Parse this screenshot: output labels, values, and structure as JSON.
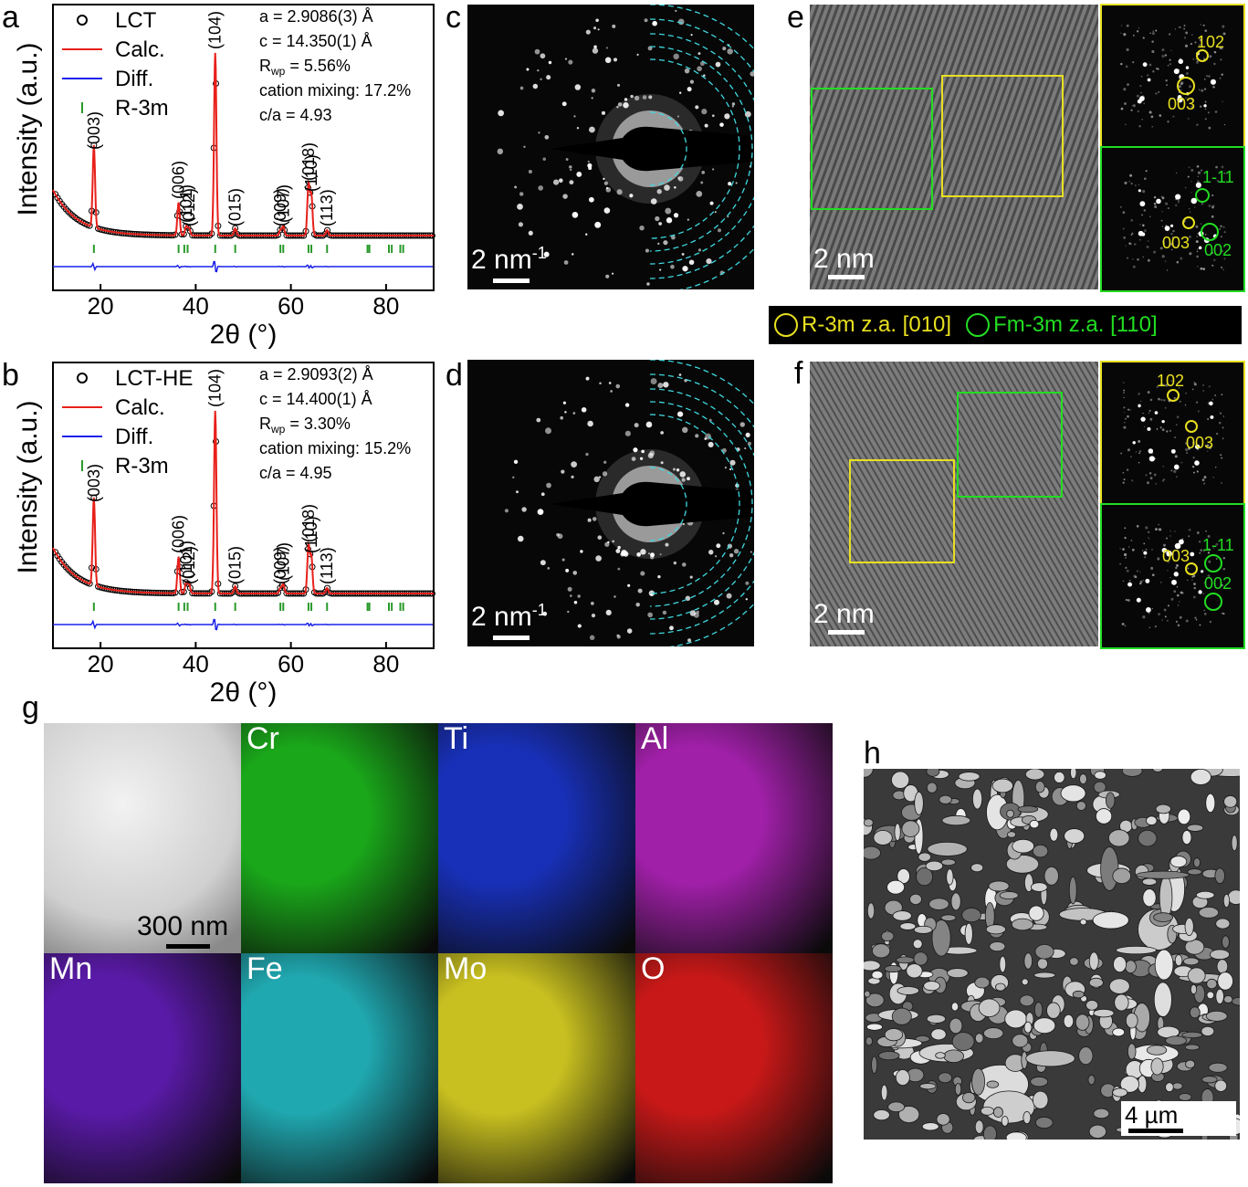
{
  "panels": {
    "a": {
      "letter": "a",
      "chart_data": {
        "type": "line",
        "xlabel": "2θ (°)",
        "ylabel": "Intensity (a.u.)",
        "xlim": [
          10,
          90
        ],
        "x_ticks": [
          "20",
          "40",
          "60",
          "80"
        ],
        "series": [
          {
            "name": "LCT",
            "style": "open-circle",
            "color": "#000000"
          },
          {
            "name": "Calc.",
            "color": "#e8201a"
          },
          {
            "name": "Diff.",
            "color": "#1a20e8"
          },
          {
            "name": "R-3m",
            "style": "tick",
            "color": "#2a9a2a"
          }
        ],
        "peaks": [
          {
            "label": "(003)",
            "x": 18.6,
            "height": 0.45
          },
          {
            "label": "(006)",
            "x": 36.4,
            "height": 0.18
          },
          {
            "label": "(101)",
            "x": 38.0,
            "height": 0.05
          },
          {
            "label": "(012)",
            "x": 38.6,
            "height": 0.04
          },
          {
            "label": "(104)",
            "x": 44.1,
            "height": 1.0
          },
          {
            "label": "(015)",
            "x": 48.3,
            "height": 0.04
          },
          {
            "label": "(009)",
            "x": 57.8,
            "height": 0.03
          },
          {
            "label": "(107)",
            "x": 58.4,
            "height": 0.05
          },
          {
            "label": "(018)",
            "x": 63.7,
            "height": 0.28
          },
          {
            "label": "(110)",
            "x": 64.3,
            "height": 0.22
          },
          {
            "label": "(113)",
            "x": 67.6,
            "height": 0.03
          }
        ],
        "tick_positions": [
          18.6,
          36.4,
          37.6,
          38.3,
          44.1,
          48.3,
          57.8,
          58.4,
          63.7,
          64.3,
          67.6,
          76.1,
          76.5,
          80.6,
          81.2,
          83.0,
          83.6
        ],
        "annotations": {
          "a": "a = 2.9086(3) Å",
          "c": "c = 14.350(1) Å",
          "rwp": "= 5.56%",
          "mixing": "cation mixing: 17.2%",
          "ca": "c/a = 4.93"
        }
      }
    },
    "b": {
      "letter": "b",
      "chart_data": {
        "type": "line",
        "xlabel": "2θ (°)",
        "ylabel": "Intensity (a.u.)",
        "xlim": [
          10,
          90
        ],
        "x_ticks": [
          "20",
          "40",
          "60",
          "80"
        ],
        "series": [
          {
            "name": "LCT-HE",
            "style": "open-circle",
            "color": "#000000"
          },
          {
            "name": "Calc.",
            "color": "#e8201a"
          },
          {
            "name": "Diff.",
            "color": "#1a20e8"
          },
          {
            "name": "R-3m",
            "style": "tick",
            "color": "#2a9a2a"
          }
        ],
        "peaks": [
          {
            "label": "(003)",
            "x": 18.6,
            "height": 0.48
          },
          {
            "label": "(006)",
            "x": 36.4,
            "height": 0.2
          },
          {
            "label": "(101)",
            "x": 38.0,
            "height": 0.06
          },
          {
            "label": "(012)",
            "x": 38.6,
            "height": 0.05
          },
          {
            "label": "(104)",
            "x": 44.1,
            "height": 1.0
          },
          {
            "label": "(015)",
            "x": 48.3,
            "height": 0.04
          },
          {
            "label": "(009)",
            "x": 57.8,
            "height": 0.03
          },
          {
            "label": "(107)",
            "x": 58.4,
            "height": 0.05
          },
          {
            "label": "(018)",
            "x": 63.7,
            "height": 0.26
          },
          {
            "label": "(110)",
            "x": 64.3,
            "height": 0.2
          },
          {
            "label": "(113)",
            "x": 67.6,
            "height": 0.03
          }
        ],
        "tick_positions": [
          18.6,
          36.4,
          37.6,
          38.3,
          44.1,
          48.3,
          57.8,
          58.4,
          63.7,
          64.3,
          67.6,
          76.1,
          76.5,
          80.6,
          81.2,
          83.0,
          83.6
        ],
        "annotations": {
          "a": "a = 2.9093(2) Å",
          "c": "c = 14.400(1) Å",
          "rwp": "= 3.30%",
          "mixing": "cation mixing: 15.2%",
          "ca": "c/a = 4.95"
        }
      }
    },
    "c": {
      "letter": "c",
      "scale": "2 nm",
      "scale_sup": "-1"
    },
    "d": {
      "letter": "d",
      "scale": "2 nm",
      "scale_sup": "-1"
    },
    "e": {
      "letter": "e",
      "scale": "2 nm",
      "fft_top": [
        "102",
        "003"
      ],
      "fft_bottom": [
        "1-11",
        "003",
        "002"
      ]
    },
    "f": {
      "letter": "f",
      "scale": "2 nm",
      "fft_top": [
        "102",
        "003"
      ],
      "fft_bottom": [
        "003",
        "1-11",
        "002"
      ]
    },
    "g": {
      "letter": "g",
      "scale": "300 nm",
      "tiles": [
        "Cr",
        "Ti",
        "Al",
        "Mn",
        "Fe",
        "Mo",
        "O"
      ]
    },
    "h": {
      "letter": "h",
      "scale": "4 µm"
    }
  },
  "legend": {
    "r3m": "R-3m z.a. [010]",
    "fm3m": "Fm-3m z.a. [110]"
  },
  "colors": {
    "obs": "#000000",
    "calc": "#e8201a",
    "diff": "#1a20e8",
    "tick": "#2a9a2a",
    "ring": "#3fd8e0",
    "yellow": "#e8e020",
    "green": "#22dd22",
    "Cr": "#1aa81a",
    "Ti": "#1830b8",
    "Al": "#a020a8",
    "Mn": "#5a1aa8",
    "Fe": "#20a8b0",
    "Mo": "#c8c020",
    "O": "#c81818"
  }
}
